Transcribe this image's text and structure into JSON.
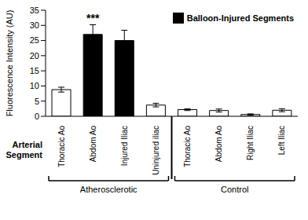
{
  "chart_data": {
    "type": "bar",
    "categories": [
      "Thoracic Ao",
      "Abdom Ao",
      "Injured Iliac",
      "Uninjured iliac",
      "Thoracic Ao",
      "Abdom Ao",
      "Right Iliac",
      "Left Iliac"
    ],
    "values": [
      8.8,
      27.0,
      25.0,
      3.7,
      2.2,
      1.9,
      0.6,
      2.0
    ],
    "errors": [
      0.8,
      3.2,
      3.4,
      0.6,
      0.3,
      0.5,
      0.2,
      0.5
    ],
    "colors": [
      "#ffffff",
      "#000000",
      "#000000",
      "#ffffff",
      "#ffffff",
      "#ffffff",
      "#ffffff",
      "#ffffff"
    ],
    "y_label": "Fluorescence Intensity (AU)",
    "x_label": "Arterial Segment",
    "ylim": [
      0,
      35
    ],
    "yticks": [
      0,
      5,
      10,
      15,
      20,
      25,
      30,
      35
    ],
    "legend": "upper right",
    "legend_entries": [
      {
        "name": "Balloon-Injured Segments",
        "color": "#000000"
      }
    ],
    "annotations": [
      {
        "text": "***",
        "index": 1
      }
    ],
    "groups": [
      {
        "label": "Atherosclerotic",
        "start": 0,
        "end": 3
      },
      {
        "label": "Control",
        "start": 4,
        "end": 7
      }
    ],
    "grid": false
  }
}
